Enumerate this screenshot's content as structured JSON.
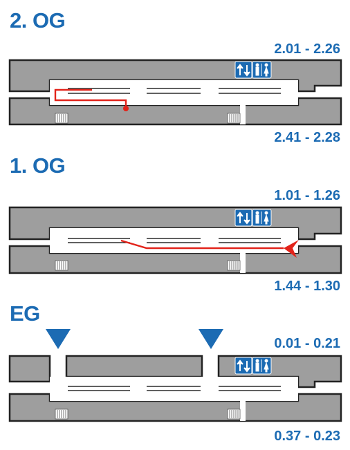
{
  "floors": [
    {
      "id": "og2",
      "title": "2. OG",
      "range_top": "2.01 - 2.26",
      "range_bottom": "2.41 - 2.28"
    },
    {
      "id": "og1",
      "title": "1. OG",
      "range_top": "1.01 - 1.26",
      "range_bottom": "1.44 - 1.30"
    },
    {
      "id": "eg",
      "title": "EG",
      "range_top": "0.01 - 0.21",
      "range_bottom": "0.37 - 0.23"
    }
  ],
  "signs": {
    "elevator": "elevator-icon",
    "restroom": "restroom-icon"
  },
  "colors": {
    "accent": "#1c6bb3",
    "route": "#e2231a",
    "wall": "#9e9e9e",
    "outline": "#222222"
  }
}
